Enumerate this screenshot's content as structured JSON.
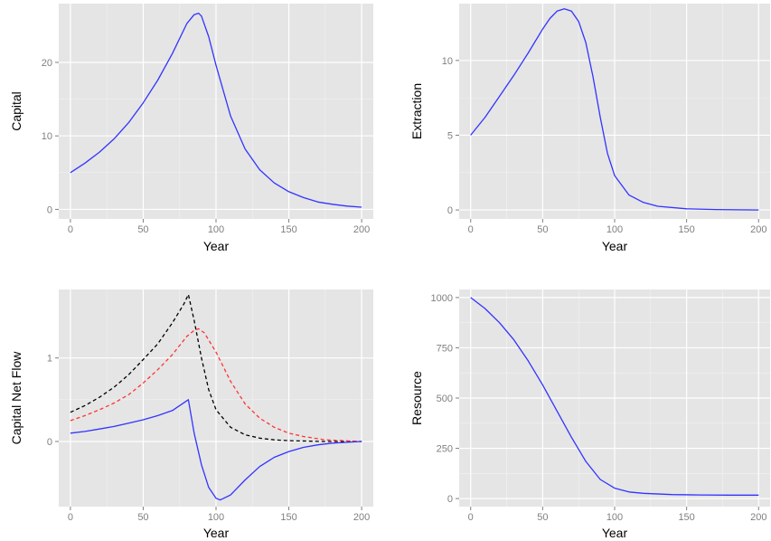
{
  "chart_data": [
    {
      "type": "line",
      "xlabel": "Year",
      "ylabel": "Capital",
      "xlim": [
        -8,
        208
      ],
      "ylim": [
        -1.3,
        28
      ],
      "xticks": [
        0,
        50,
        100,
        150,
        200
      ],
      "xtick_labels": [
        "0",
        "50",
        "100",
        "150",
        "200"
      ],
      "yticks": [
        0,
        10,
        20
      ],
      "ytick_labels": [
        "0",
        "10",
        "20"
      ],
      "grid": true,
      "series": [
        {
          "color": "#3333ff",
          "dash": "solid",
          "x": [
            0,
            10,
            20,
            30,
            40,
            50,
            60,
            70,
            80,
            85,
            88,
            90,
            95,
            100,
            110,
            120,
            130,
            140,
            150,
            160,
            170,
            180,
            190,
            200
          ],
          "y": [
            5.0,
            6.3,
            7.8,
            9.6,
            11.8,
            14.5,
            17.6,
            21.2,
            25.3,
            26.5,
            26.7,
            26.3,
            23.5,
            19.6,
            12.7,
            8.2,
            5.4,
            3.6,
            2.4,
            1.6,
            1.0,
            0.7,
            0.45,
            0.3
          ]
        }
      ]
    },
    {
      "type": "line",
      "xlabel": "Year",
      "ylabel": "Extraction",
      "xlim": [
        -8,
        208
      ],
      "ylim": [
        -0.6,
        13.8
      ],
      "xticks": [
        0,
        50,
        100,
        150,
        200
      ],
      "xtick_labels": [
        "0",
        "50",
        "100",
        "150",
        "200"
      ],
      "yticks": [
        0,
        5,
        10
      ],
      "ytick_labels": [
        "0",
        "5",
        "10"
      ],
      "grid": true,
      "series": [
        {
          "color": "#3333ff",
          "dash": "solid",
          "x": [
            0,
            10,
            20,
            30,
            40,
            50,
            55,
            60,
            65,
            70,
            75,
            80,
            85,
            90,
            95,
            100,
            110,
            120,
            130,
            150,
            170,
            200
          ],
          "y": [
            5.0,
            6.2,
            7.6,
            9.0,
            10.5,
            12.1,
            12.8,
            13.3,
            13.45,
            13.3,
            12.6,
            11.2,
            8.9,
            6.2,
            3.8,
            2.3,
            1.0,
            0.5,
            0.25,
            0.08,
            0.03,
            0.0
          ]
        }
      ]
    },
    {
      "type": "line",
      "xlabel": "Year",
      "ylabel": "Capital Net Flow",
      "xlim": [
        -8,
        208
      ],
      "ylim": [
        -0.78,
        1.82
      ],
      "xticks": [
        0,
        50,
        100,
        150,
        200
      ],
      "xtick_labels": [
        "0",
        "50",
        "100",
        "150",
        "200"
      ],
      "yticks": [
        0,
        1
      ],
      "ytick_labels": [
        "0",
        "1"
      ],
      "grid": true,
      "series": [
        {
          "color": "#000000",
          "dash": "dashed",
          "x": [
            0,
            10,
            20,
            30,
            40,
            50,
            60,
            70,
            78,
            81,
            85,
            90,
            95,
            100,
            110,
            120,
            130,
            140,
            150,
            175,
            200
          ],
          "y": [
            0.35,
            0.43,
            0.53,
            0.65,
            0.8,
            0.98,
            1.17,
            1.42,
            1.65,
            1.76,
            1.45,
            1.0,
            0.62,
            0.38,
            0.17,
            0.08,
            0.04,
            0.02,
            0.01,
            0.0,
            0.0
          ]
        },
        {
          "color": "#ff3333",
          "dash": "dashed",
          "x": [
            0,
            10,
            20,
            30,
            40,
            50,
            60,
            70,
            80,
            85,
            88,
            92,
            100,
            110,
            120,
            130,
            140,
            150,
            160,
            175,
            200
          ],
          "y": [
            0.25,
            0.31,
            0.38,
            0.46,
            0.56,
            0.7,
            0.86,
            1.04,
            1.26,
            1.33,
            1.35,
            1.3,
            1.07,
            0.72,
            0.45,
            0.28,
            0.17,
            0.1,
            0.06,
            0.02,
            0.0
          ]
        },
        {
          "color": "#3333ff",
          "dash": "solid",
          "x": [
            0,
            10,
            20,
            30,
            40,
            50,
            60,
            70,
            81,
            85,
            90,
            95,
            100,
            103,
            110,
            120,
            130,
            140,
            150,
            160,
            170,
            180,
            190,
            200
          ],
          "y": [
            0.1,
            0.12,
            0.15,
            0.18,
            0.22,
            0.26,
            0.31,
            0.37,
            0.5,
            0.1,
            -0.28,
            -0.55,
            -0.68,
            -0.7,
            -0.64,
            -0.46,
            -0.3,
            -0.19,
            -0.12,
            -0.07,
            -0.04,
            -0.02,
            -0.01,
            0.0
          ]
        }
      ]
    },
    {
      "type": "line",
      "xlabel": "Year",
      "ylabel": "Resource",
      "xlim": [
        -8,
        208
      ],
      "ylim": [
        -40,
        1040
      ],
      "xticks": [
        0,
        50,
        100,
        150,
        200
      ],
      "xtick_labels": [
        "0",
        "50",
        "100",
        "150",
        "200"
      ],
      "yticks": [
        0,
        250,
        500,
        750,
        1000
      ],
      "ytick_labels": [
        "0",
        "250",
        "500",
        "750",
        "1000"
      ],
      "grid": true,
      "series": [
        {
          "color": "#3333ff",
          "dash": "solid",
          "x": [
            0,
            10,
            20,
            30,
            40,
            50,
            60,
            70,
            80,
            90,
            100,
            110,
            120,
            140,
            160,
            180,
            200
          ],
          "y": [
            1000,
            945,
            875,
            790,
            685,
            565,
            435,
            305,
            185,
            95,
            52,
            33,
            26,
            20,
            18,
            17,
            17
          ]
        }
      ]
    }
  ]
}
